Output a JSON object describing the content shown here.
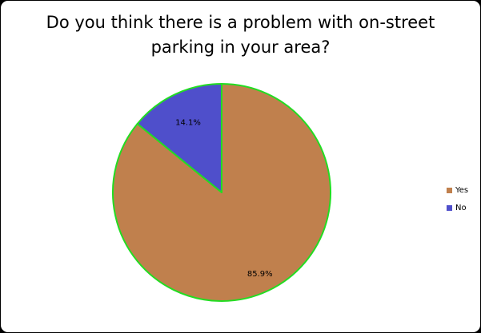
{
  "chart_data": {
    "type": "pie",
    "title": "Do you think there is a problem with on-street parking in your area?",
    "title_lines": [
      "Do you think there is a problem with on-street",
      "parking in your area?"
    ],
    "categories": [
      "Yes",
      "No"
    ],
    "values": [
      85.9,
      14.1
    ],
    "data_labels": [
      "85.9%",
      "14.1%"
    ],
    "colors": [
      "#c0804d",
      "#4f4fcb"
    ],
    "slice_border_color": "#22dd22",
    "legend_position": "right"
  }
}
